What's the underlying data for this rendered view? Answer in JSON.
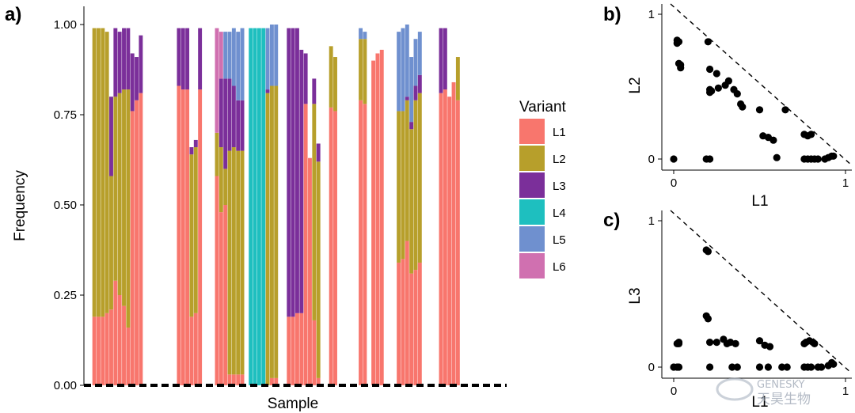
{
  "panels": {
    "a": "a)",
    "b": "b)",
    "c": "c)"
  },
  "watermark": {
    "line1": "GENESKY",
    "line2": "天昊生物"
  },
  "chart_data": [
    {
      "id": "a",
      "type": "bar",
      "stacked": true,
      "xlabel": "Sample",
      "ylabel": "Frequency",
      "ylim": [
        0,
        1
      ],
      "yticks": [
        "0.00",
        "0.25",
        "0.50",
        "0.75",
        "1.00"
      ],
      "legend": {
        "title": "Variant",
        "placement": "right"
      },
      "series_names": [
        "L1",
        "L2",
        "L3",
        "L4",
        "L5",
        "L6"
      ],
      "colors": {
        "L1": "#F8766D",
        "L2": "#B79F2B",
        "L3": "#7B2F9A",
        "L4": "#1EBFBF",
        "L5": "#6F90CF",
        "L6": "#D070B0"
      },
      "n_samples": 100,
      "bars": [
        {
          "i": 2,
          "L1": 0.19,
          "L2": 0.8
        },
        {
          "i": 3,
          "L1": 0.19,
          "L2": 0.8
        },
        {
          "i": 4,
          "L1": 0.19,
          "L2": 0.8
        },
        {
          "i": 5,
          "L1": 0.2,
          "L2": 0.78
        },
        {
          "i": 6,
          "L1": 0.21,
          "L2": 0.37,
          "L3": 0.22
        },
        {
          "i": 7,
          "L1": 0.29,
          "L2": 0.51,
          "L3": 0.19
        },
        {
          "i": 8,
          "L1": 0.25,
          "L2": 0.56,
          "L3": 0.17
        },
        {
          "i": 9,
          "L1": 0.22,
          "L2": 0.6,
          "L3": 0.17
        },
        {
          "i": 10,
          "L1": 0.16,
          "L2": 0.66,
          "L3": 0.17
        },
        {
          "i": 11,
          "L1": 0.76,
          "L3": 0.16
        },
        {
          "i": 12,
          "L1": 0.79,
          "L3": 0.12
        },
        {
          "i": 13,
          "L1": 0.81,
          "L3": 0.16
        },
        {
          "i": 22,
          "L1": 0.83,
          "L3": 0.16
        },
        {
          "i": 23,
          "L1": 0.82,
          "L3": 0.17
        },
        {
          "i": 24,
          "L1": 0.82,
          "L3": 0.17
        },
        {
          "i": 25,
          "L1": 0.19,
          "L2": 0.45,
          "L3": 0.02
        },
        {
          "i": 26,
          "L1": 0.2,
          "L2": 0.46,
          "L3": 0.02
        },
        {
          "i": 27,
          "L1": 0.82,
          "L3": 0.17
        },
        {
          "i": 31,
          "L1": 0.58,
          "L2": 0.12,
          "L6": 0.29
        },
        {
          "i": 32,
          "L1": 0.48,
          "L2": 0.18,
          "L3": 0.19,
          "L6": 0.13
        },
        {
          "i": 33,
          "L1": 0.5,
          "L2": 0.1,
          "L3": 0.25,
          "L5": 0.13
        },
        {
          "i": 34,
          "L1": 0.03,
          "L2": 0.62,
          "L3": 0.2,
          "L5": 0.13
        },
        {
          "i": 35,
          "L1": 0.03,
          "L2": 0.63,
          "L3": 0.17,
          "L5": 0.16
        },
        {
          "i": 36,
          "L1": 0.03,
          "L2": 0.62,
          "L3": 0.14,
          "L5": 0.19
        },
        {
          "i": 37,
          "L1": 0.03,
          "L2": 0.62,
          "L3": 0.14,
          "L5": 0.2
        },
        {
          "i": 39,
          "L4": 0.99
        },
        {
          "i": 40,
          "L4": 0.99
        },
        {
          "i": 41,
          "L4": 0.99
        },
        {
          "i": 42,
          "L4": 0.99
        },
        {
          "i": 43,
          "L2": 0.81,
          "L3": 0.01,
          "L5": 0.17
        },
        {
          "i": 44,
          "L1": 0.02,
          "L2": 0.81,
          "L5": 0.17
        },
        {
          "i": 45,
          "L1": 0.02,
          "L2": 0.81,
          "L5": 0.17
        },
        {
          "i": 48,
          "L1": 0.19,
          "L3": 0.8
        },
        {
          "i": 49,
          "L1": 0.19,
          "L3": 0.8
        },
        {
          "i": 50,
          "L1": 0.2,
          "L3": 0.79
        },
        {
          "i": 51,
          "L1": 0.2,
          "L3": 0.73
        },
        {
          "i": 52,
          "L1": 0.78,
          "L3": 0.14
        },
        {
          "i": 53,
          "L1": 0.63
        },
        {
          "i": 54,
          "L1": 0.18,
          "L2": 0.6,
          "L3": 0.07
        },
        {
          "i": 55,
          "L1": 0.02,
          "L2": 0.6,
          "L3": 0.05
        },
        {
          "i": 58,
          "L1": 0.77,
          "L2": 0.17
        },
        {
          "i": 59,
          "L1": 0.76,
          "L2": 0.15
        },
        {
          "i": 65,
          "L1": 0.79,
          "L2": 0.17,
          "L5": 0.03
        },
        {
          "i": 66,
          "L1": 0.78,
          "L2": 0.18,
          "L5": 0.02
        },
        {
          "i": 68,
          "L1": 0.9
        },
        {
          "i": 69,
          "L1": 0.92
        },
        {
          "i": 70,
          "L1": 0.93
        },
        {
          "i": 74,
          "L1": 0.34,
          "L2": 0.42,
          "L5": 0.22
        },
        {
          "i": 75,
          "L1": 0.35,
          "L2": 0.41,
          "L5": 0.23
        },
        {
          "i": 76,
          "L1": 0.4,
          "L2": 0.39,
          "L3": 0.01,
          "L5": 0.2
        },
        {
          "i": 77,
          "L1": 0.31,
          "L2": 0.4,
          "L3": 0.02,
          "L5": 0.18
        },
        {
          "i": 78,
          "L1": 0.32,
          "L2": 0.47,
          "L3": 0.04,
          "L5": 0.13
        },
        {
          "i": 79,
          "L1": 0.34,
          "L2": 0.47,
          "L3": 0.05,
          "L5": 0.12
        },
        {
          "i": 84,
          "L1": 0.81,
          "L3": 0.18
        },
        {
          "i": 85,
          "L1": 0.82,
          "L3": 0.17
        },
        {
          "i": 86,
          "L1": 0.8
        },
        {
          "i": 87,
          "L1": 0.84
        },
        {
          "i": 88,
          "L1": 0.79,
          "L2": 0.12
        }
      ]
    },
    {
      "id": "b",
      "type": "scatter",
      "xlabel": "L1",
      "ylabel": "L2",
      "xlim": [
        0,
        1
      ],
      "ylim": [
        0,
        1
      ],
      "xticks": [
        "0",
        "1"
      ],
      "yticks": [
        "0",
        "1"
      ],
      "reference_line": "x + y = 1",
      "points": [
        [
          0.02,
          0.8
        ],
        [
          0.02,
          0.82
        ],
        [
          0.03,
          0.81
        ],
        [
          0.03,
          0.66
        ],
        [
          0.04,
          0.63
        ],
        [
          0.04,
          0.65
        ],
        [
          0.2,
          0.81
        ],
        [
          0.21,
          0.62
        ],
        [
          0.21,
          0.48
        ],
        [
          0.21,
          0.46
        ],
        [
          0.22,
          0.47
        ],
        [
          0.25,
          0.59
        ],
        [
          0.26,
          0.49
        ],
        [
          0.3,
          0.51
        ],
        [
          0.32,
          0.54
        ],
        [
          0.35,
          0.48
        ],
        [
          0.37,
          0.45
        ],
        [
          0.39,
          0.38
        ],
        [
          0.4,
          0.36
        ],
        [
          0.5,
          0.34
        ],
        [
          0.52,
          0.16
        ],
        [
          0.55,
          0.15
        ],
        [
          0.58,
          0.13
        ],
        [
          0.6,
          0.01
        ],
        [
          0.65,
          0.34
        ],
        [
          0.76,
          0.17
        ],
        [
          0.78,
          0.16
        ],
        [
          0.8,
          0.17
        ],
        [
          0.0,
          0.0
        ],
        [
          0.19,
          0.0
        ],
        [
          0.21,
          0.0
        ],
        [
          0.76,
          0.0
        ],
        [
          0.78,
          0.0
        ],
        [
          0.8,
          0.0
        ],
        [
          0.82,
          0.0
        ],
        [
          0.84,
          0.0
        ],
        [
          0.88,
          0.0
        ],
        [
          0.9,
          0.01
        ],
        [
          0.92,
          0.02
        ],
        [
          0.93,
          0.02
        ]
      ]
    },
    {
      "id": "c",
      "type": "scatter",
      "xlabel": "L1",
      "ylabel": "L3",
      "xlim": [
        0,
        1
      ],
      "ylim": [
        0,
        1
      ],
      "xticks": [
        "0",
        "1"
      ],
      "yticks": [
        "0",
        "1"
      ],
      "reference_line": "x + y = 1",
      "points": [
        [
          0.02,
          0.16
        ],
        [
          0.03,
          0.17
        ],
        [
          0.03,
          0.16
        ],
        [
          0.02,
          0.0
        ],
        [
          0.0,
          0.0
        ],
        [
          0.03,
          0.0
        ],
        [
          0.19,
          0.8
        ],
        [
          0.2,
          0.79
        ],
        [
          0.19,
          0.35
        ],
        [
          0.2,
          0.33
        ],
        [
          0.21,
          0.17
        ],
        [
          0.25,
          0.17
        ],
        [
          0.29,
          0.19
        ],
        [
          0.31,
          0.16
        ],
        [
          0.33,
          0.17
        ],
        [
          0.36,
          0.16
        ],
        [
          0.21,
          0.0
        ],
        [
          0.34,
          0.0
        ],
        [
          0.37,
          0.0
        ],
        [
          0.5,
          0.18
        ],
        [
          0.53,
          0.15
        ],
        [
          0.56,
          0.14
        ],
        [
          0.5,
          0.0
        ],
        [
          0.55,
          0.0
        ],
        [
          0.63,
          0.0
        ],
        [
          0.66,
          0.0
        ],
        [
          0.76,
          0.16
        ],
        [
          0.77,
          0.17
        ],
        [
          0.79,
          0.18
        ],
        [
          0.81,
          0.17
        ],
        [
          0.82,
          0.16
        ],
        [
          0.84,
          0.0
        ],
        [
          0.76,
          0.0
        ],
        [
          0.78,
          0.0
        ],
        [
          0.8,
          0.0
        ],
        [
          0.86,
          0.0
        ],
        [
          0.9,
          0.01
        ],
        [
          0.92,
          0.03
        ],
        [
          0.93,
          0.02
        ]
      ]
    }
  ]
}
